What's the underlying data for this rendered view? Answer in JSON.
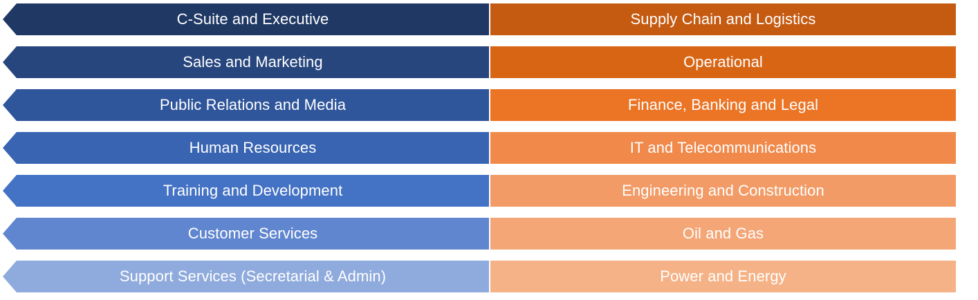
{
  "rows": [
    {
      "left": "C-Suite and Executive",
      "right": "Supply Chain and Logistics",
      "left_color": "#1F3864",
      "right_color": "#C55A11"
    },
    {
      "left": "Sales and Marketing",
      "right": "Operational",
      "left_color": "#27467D",
      "right_color": "#D86514"
    },
    {
      "left": "Public Relations and Media",
      "right": "Finance, Banking and Legal",
      "left_color": "#2F559A",
      "right_color": "#EB7425"
    },
    {
      "left": "Human Resources",
      "right": "IT and Telecommunications",
      "left_color": "#3864B2",
      "right_color": "#F0894A"
    },
    {
      "left": "Training and Development",
      "right": "Engineering and Construction",
      "left_color": "#4472C4",
      "right_color": "#F29B66"
    },
    {
      "left": "Customer Services",
      "right": "Oil and Gas",
      "left_color": "#6086CF",
      "right_color": "#F4A676"
    },
    {
      "left": "Support Services (Secretarial & Admin)",
      "right": "Power and Energy",
      "left_color": "#8FAADC",
      "right_color": "#F5B286"
    }
  ]
}
